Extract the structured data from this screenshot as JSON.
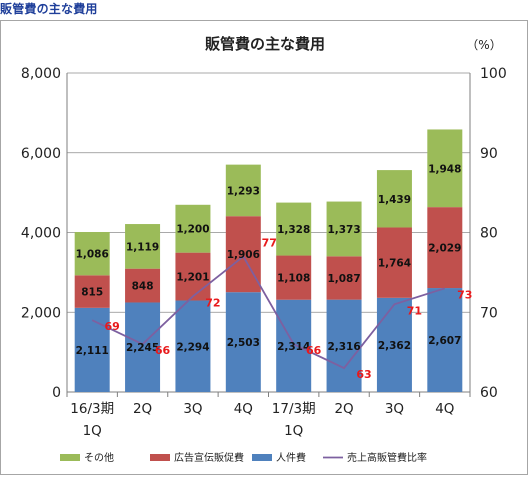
{
  "page": {
    "heading": "販管費の主な費用"
  },
  "chart_data": {
    "type": "bar",
    "stacked": true,
    "title": "販管費の主な費用",
    "unit_right": "（%）",
    "categories": [
      [
        "16/3期",
        "1Q"
      ],
      [
        "2Q"
      ],
      [
        "3Q"
      ],
      [
        "4Q"
      ],
      [
        "17/3期",
        "1Q"
      ],
      [
        "2Q"
      ],
      [
        "3Q"
      ],
      [
        "4Q"
      ]
    ],
    "y_left": {
      "min": 0,
      "max": 8000,
      "step": 2000,
      "tick_labels": [
        "0",
        "2,000",
        "4,000",
        "6,000",
        "8,000"
      ]
    },
    "y_right": {
      "min": 60,
      "max": 100,
      "step": 10,
      "tick_labels": [
        "60",
        "70",
        "80",
        "90",
        "100"
      ]
    },
    "grid": true,
    "legend_position": "bottom",
    "series": [
      {
        "name": "人件費",
        "color": "#4f81bd",
        "values": [
          2111,
          2245,
          2294,
          2503,
          2314,
          2316,
          2362,
          2607
        ],
        "labels": [
          "2,111",
          "2,245",
          "2,294",
          "2,503",
          "2,314",
          "2,316",
          "2,362",
          "2,607"
        ]
      },
      {
        "name": "広告宣伝販促費",
        "color": "#c0504d",
        "values": [
          815,
          848,
          1201,
          1906,
          1108,
          1087,
          1764,
          2029
        ],
        "labels": [
          "815",
          "848",
          "1,201",
          "1,906",
          "1,108",
          "1,087",
          "1,764",
          "2,029"
        ]
      },
      {
        "name": "その他",
        "color": "#9bbb59",
        "values": [
          1086,
          1119,
          1200,
          1293,
          1328,
          1373,
          1439,
          1948
        ],
        "labels": [
          "1,086",
          "1,119",
          "1,200",
          "1,293",
          "1,328",
          "1,373",
          "1,439",
          "1,948"
        ]
      }
    ],
    "line_series": {
      "name": "売上高販管費比率",
      "color": "#7d60a0",
      "label_color": "#e8191b",
      "axis": "right",
      "values": [
        69,
        66,
        72,
        77,
        66,
        63,
        71,
        73
      ],
      "labels": [
        "69",
        "66",
        "72",
        "77",
        "66",
        "63",
        "71",
        "73"
      ]
    },
    "legend_order": [
      "その他",
      "広告宣伝販促費",
      "人件費",
      "売上高販管費比率"
    ]
  }
}
